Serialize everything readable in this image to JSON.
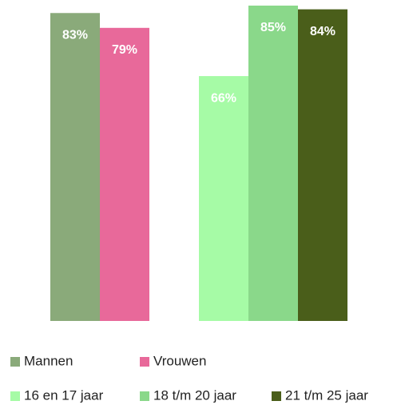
{
  "chart_data": {
    "type": "bar",
    "categories": [
      null,
      null
    ],
    "series": [
      {
        "name": "Mannen",
        "color": "#8aaa7a",
        "values": [
          83,
          null
        ],
        "value_labels": [
          "83%",
          null
        ]
      },
      {
        "name": "Vrouwen",
        "color": "#e8699a",
        "values": [
          79,
          null
        ],
        "value_labels": [
          "79%",
          null
        ]
      },
      {
        "name": "16 en 17 jaar",
        "color": "#a6fba6",
        "values": [
          null,
          66
        ],
        "value_labels": [
          null,
          "66%"
        ]
      },
      {
        "name": "18 t/m 20 jaar",
        "color": "#8ad88a",
        "values": [
          null,
          85
        ],
        "value_labels": [
          null,
          "85%"
        ]
      },
      {
        "name": "21 t/m 25 jaar",
        "color": "#4a5e1a",
        "values": [
          null,
          84
        ],
        "value_labels": [
          null,
          "84%"
        ]
      }
    ]
  }
}
